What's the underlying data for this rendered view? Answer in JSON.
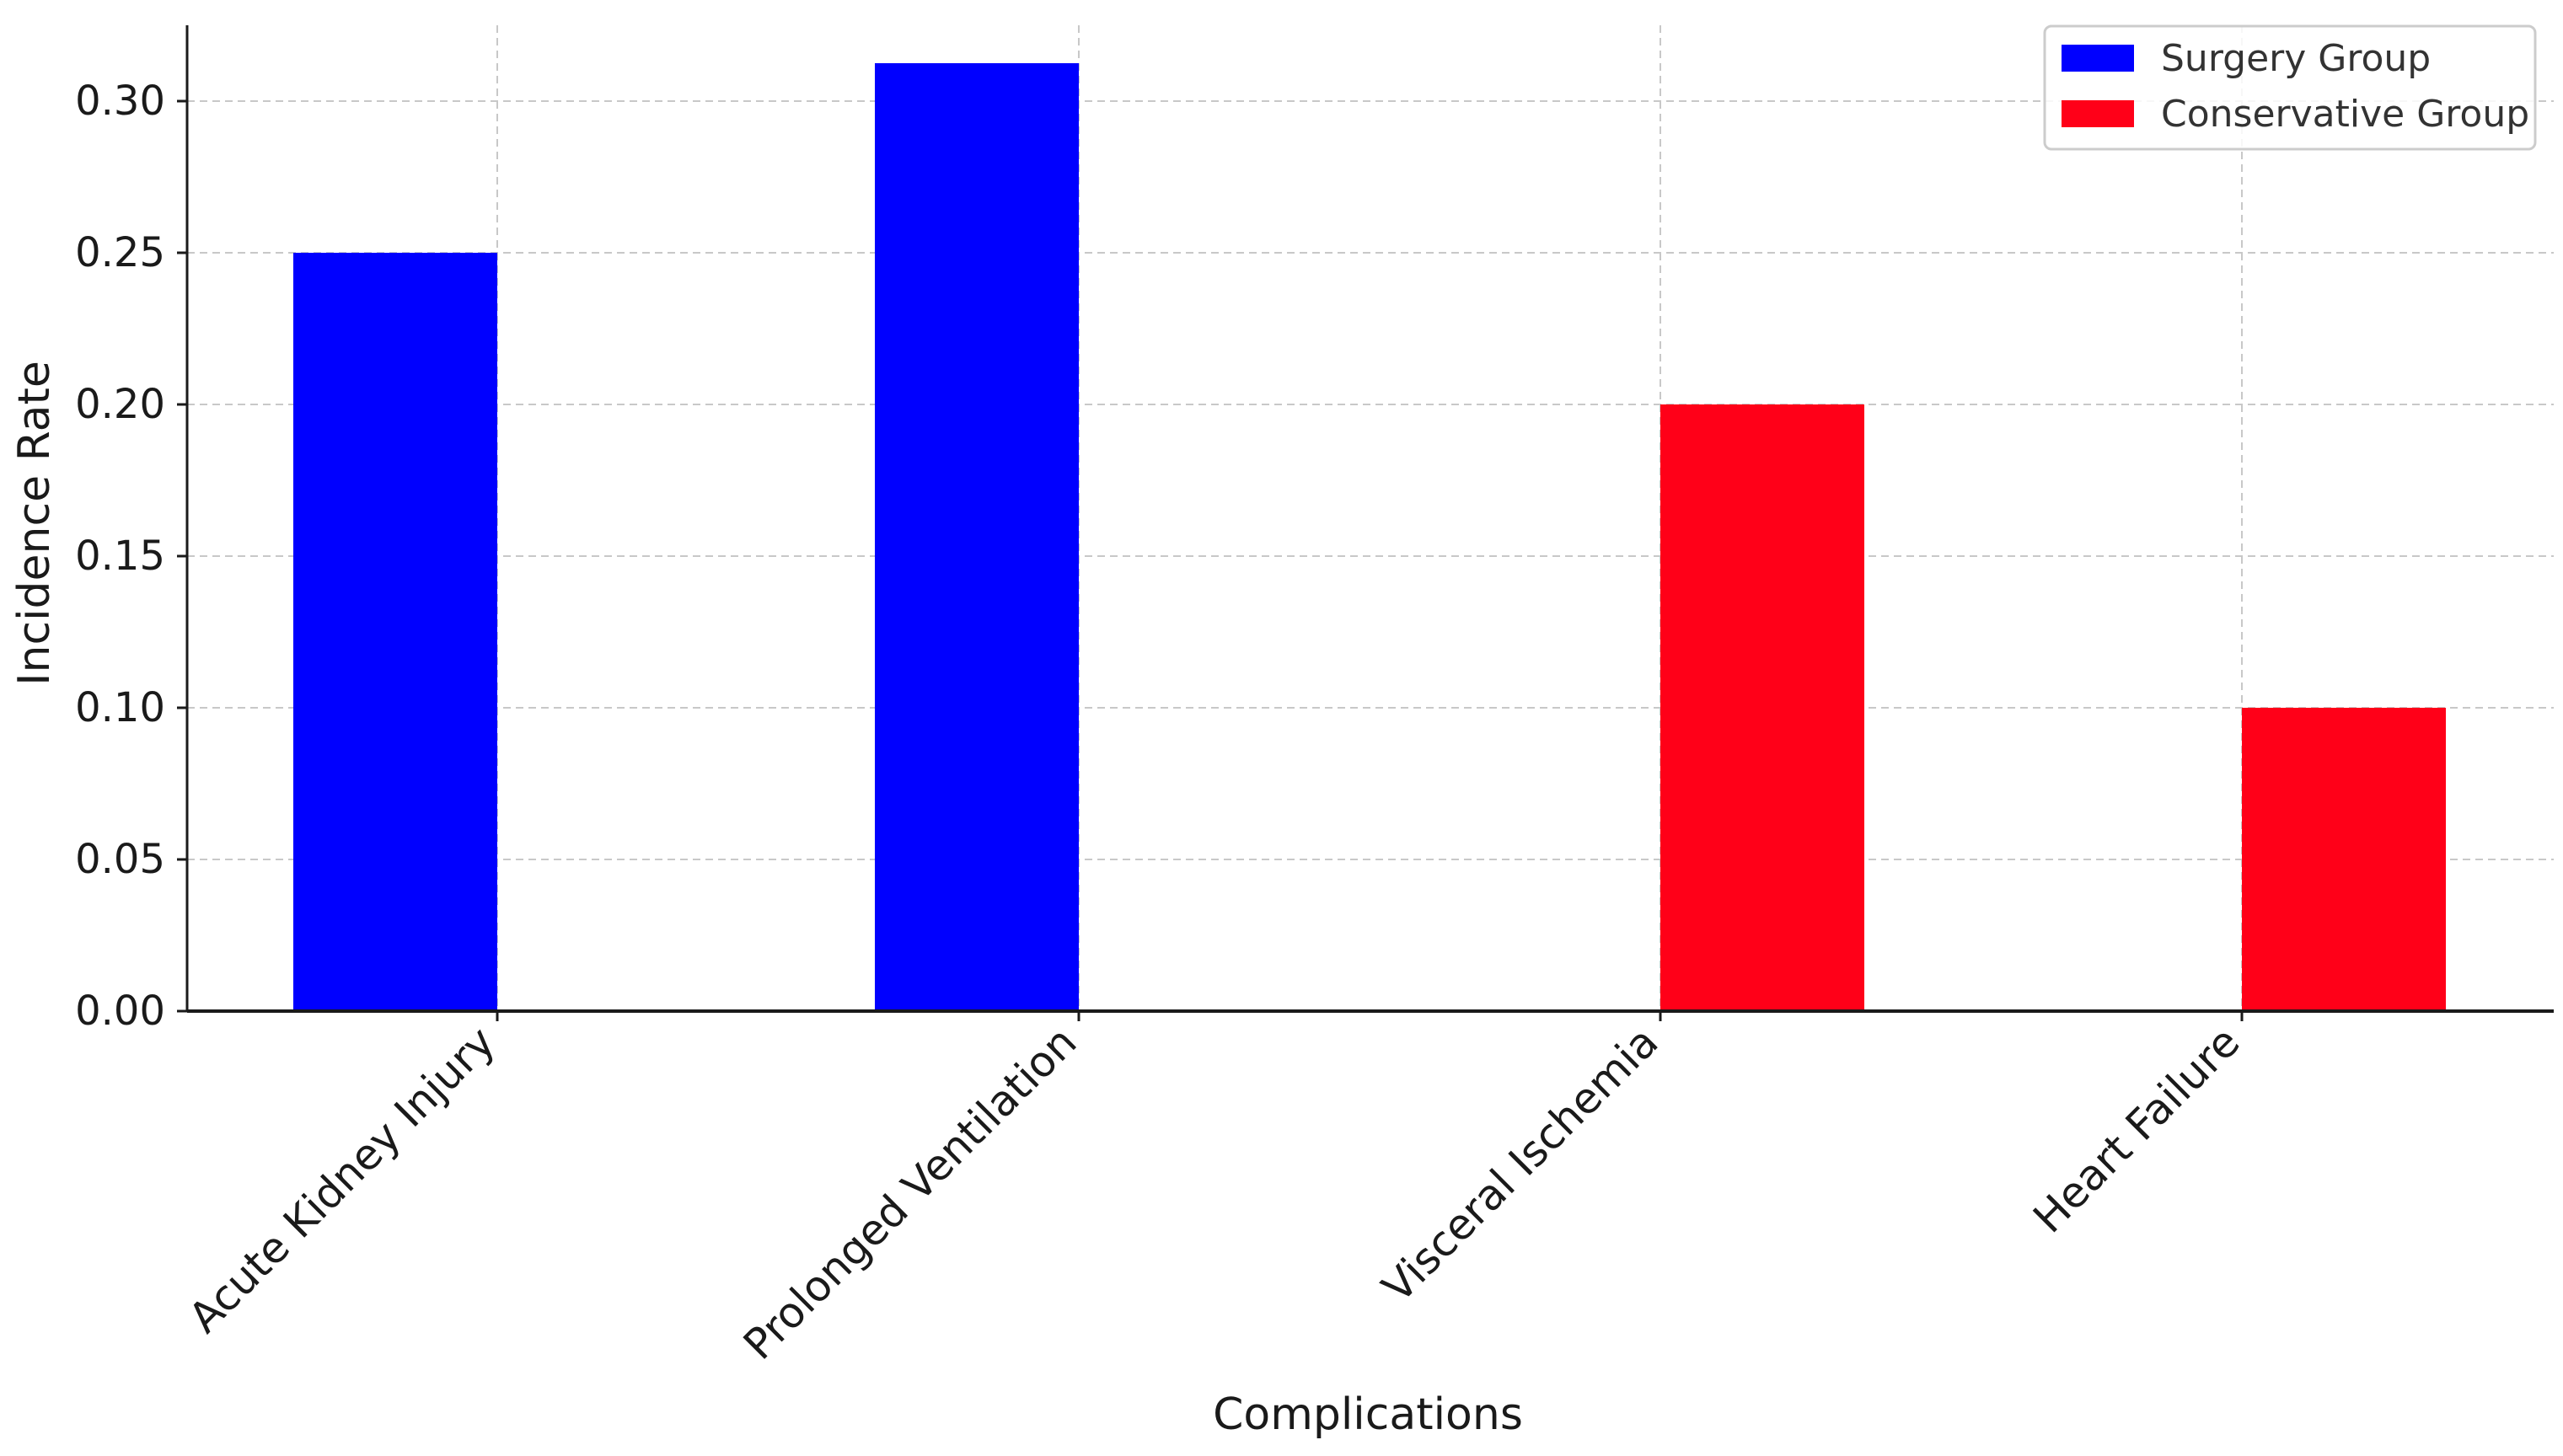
{
  "chart_data": {
    "type": "bar",
    "title": "",
    "xlabel": "Complications",
    "ylabel": "Incidence Rate",
    "categories": [
      "Acute Kidney Injury",
      "Prolonged Ventilation",
      "Visceral Ischemia",
      "Heart Failure"
    ],
    "series": [
      {
        "name": "Surgery Group",
        "color": "#0000ff",
        "values": [
          0.25,
          0.3125,
          0,
          0
        ]
      },
      {
        "name": "Conservative Group",
        "color": "#ff0018",
        "values": [
          0,
          0,
          0.2,
          0.1
        ]
      }
    ],
    "ylim": [
      0,
      0.325
    ],
    "yticks": [
      "0.00",
      "0.05",
      "0.10",
      "0.15",
      "0.20",
      "0.25",
      "0.30"
    ],
    "grid": true,
    "legend_position": "top-right"
  }
}
